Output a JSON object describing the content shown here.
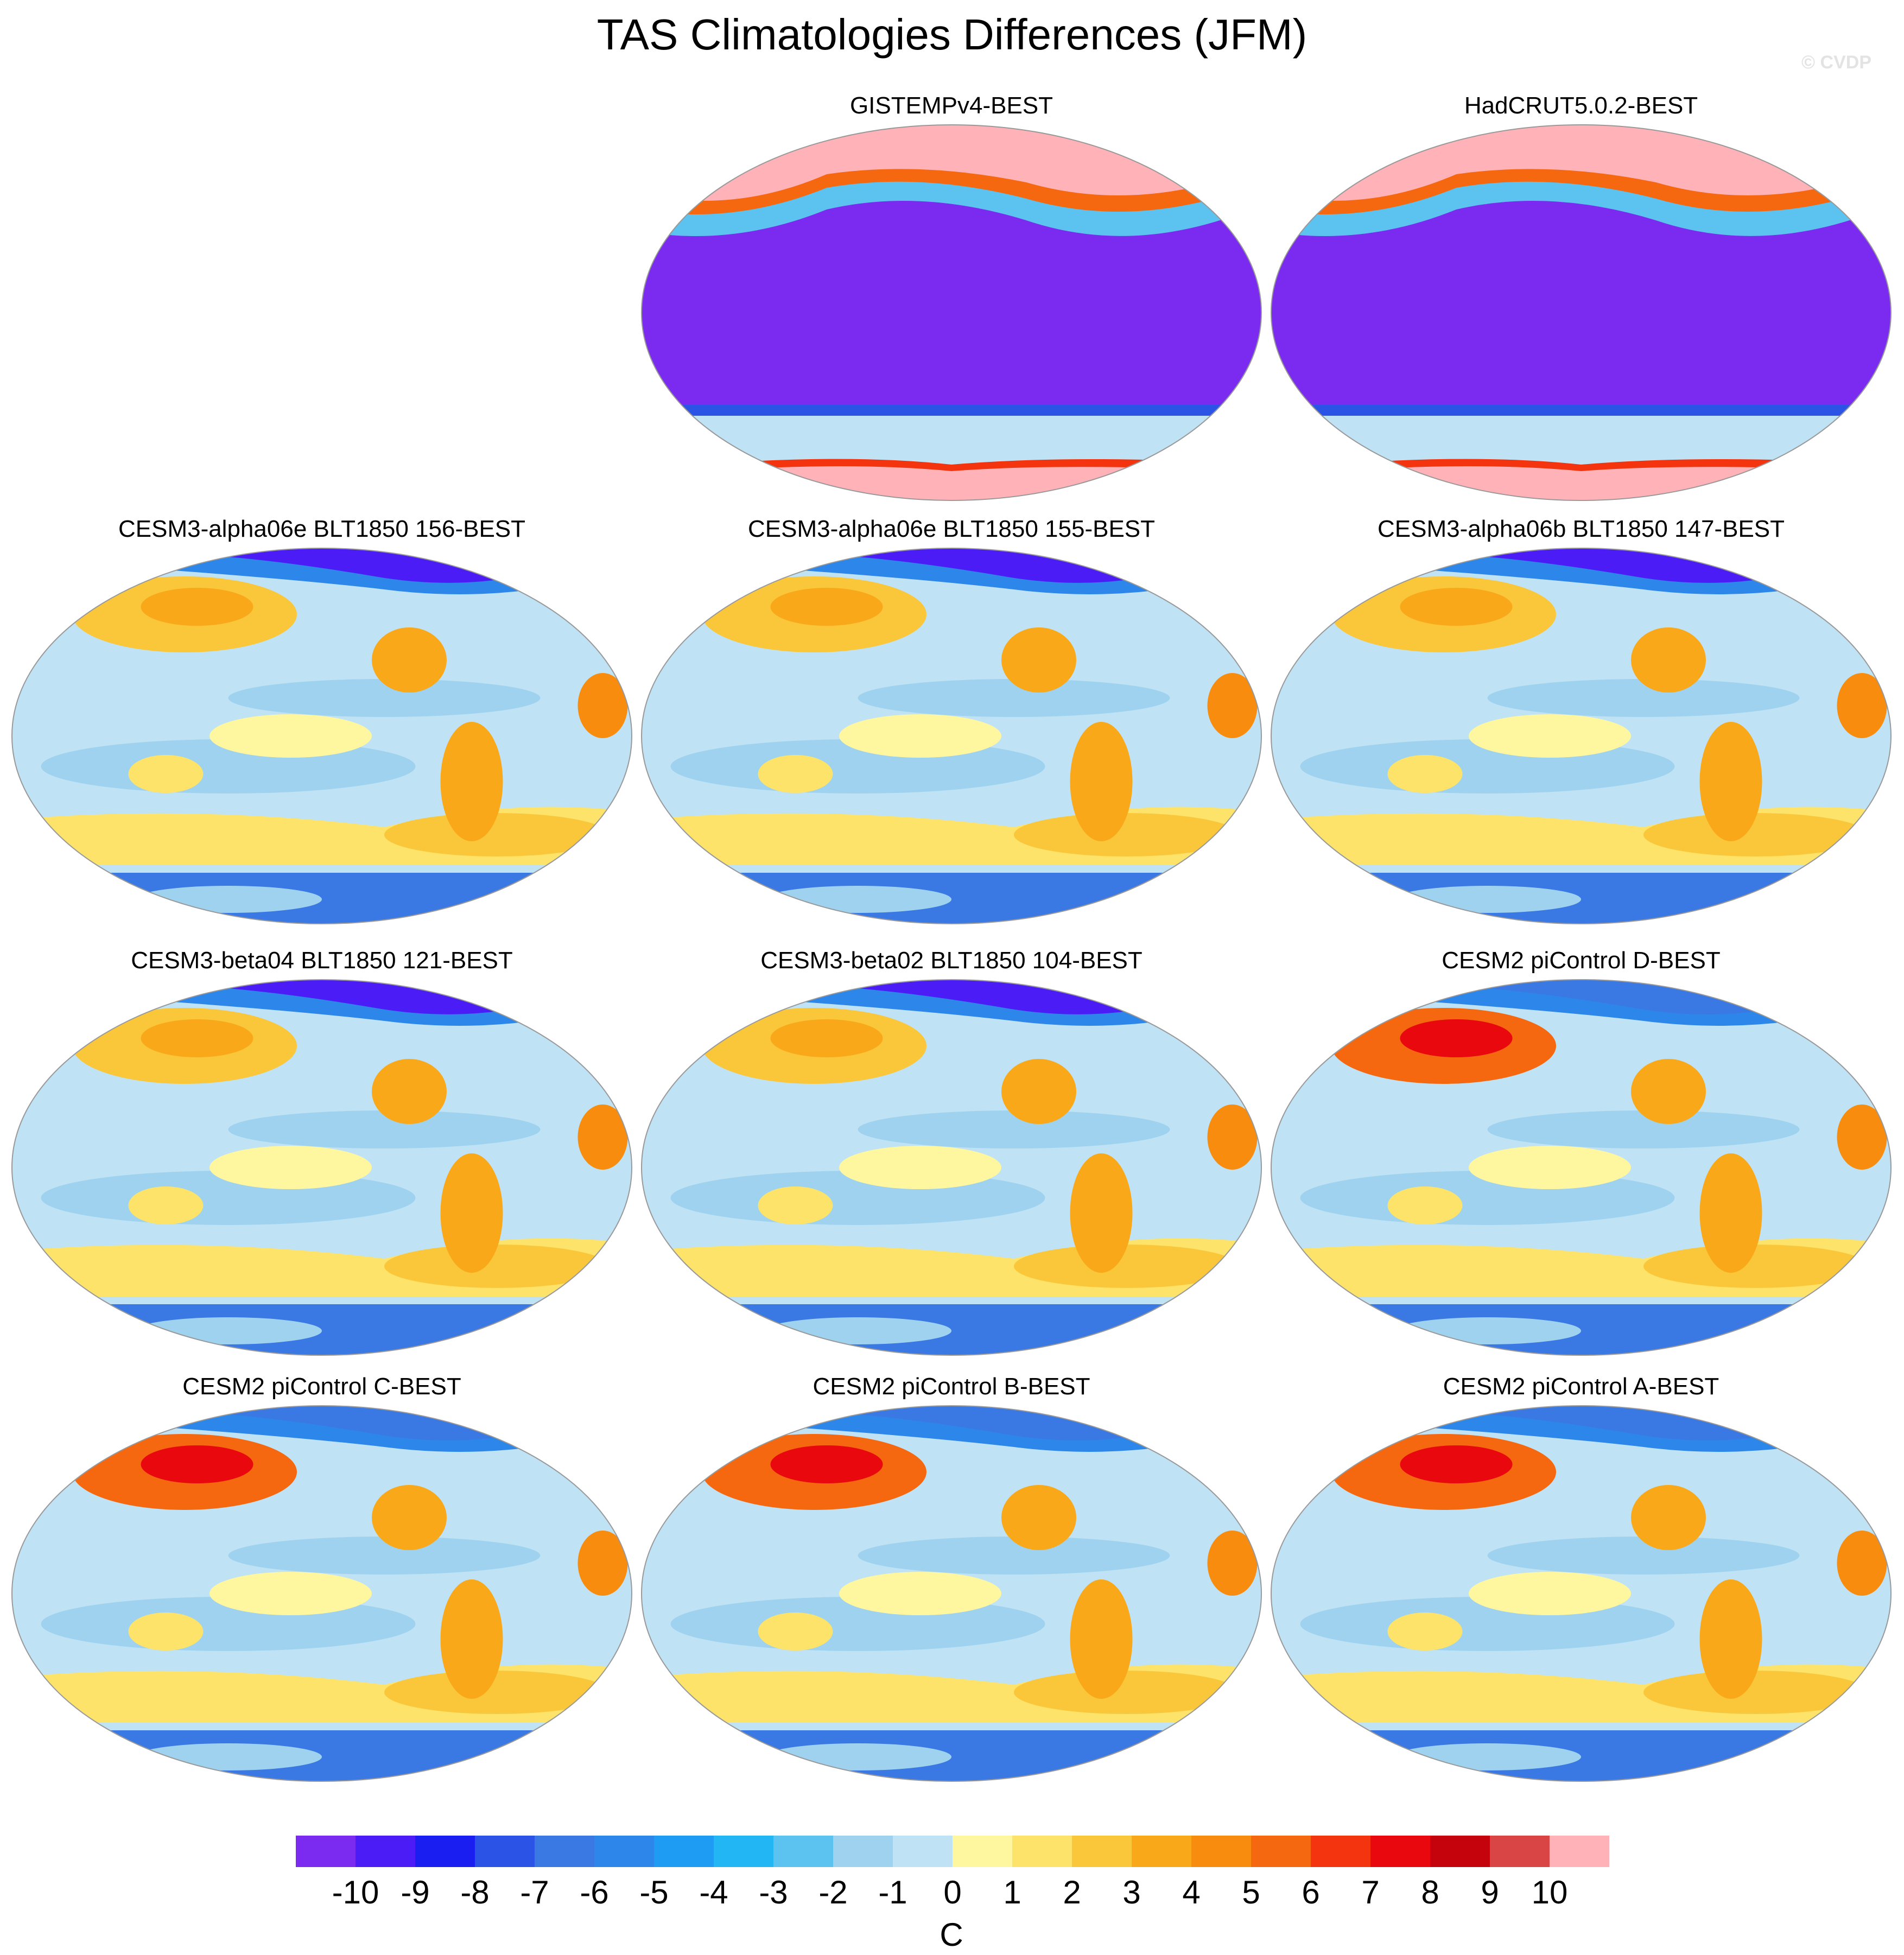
{
  "title": "TAS Climatologies Differences (JFM)",
  "watermark": "© CVDP",
  "panels": [
    {
      "title": "GISTEMPv4-BEST",
      "style": "obs"
    },
    {
      "title": "HadCRUT5.0.2-BEST",
      "style": "obs"
    },
    {
      "title": "CESM3-alpha06e BLT1850 156-BEST",
      "style": "cold"
    },
    {
      "title": "CESM3-alpha06e BLT1850 155-BEST",
      "style": "cold"
    },
    {
      "title": "CESM3-alpha06b BLT1850 147-BEST",
      "style": "cold"
    },
    {
      "title": "CESM3-beta04 BLT1850 121-BEST",
      "style": "cold"
    },
    {
      "title": "CESM3-beta02 BLT1850 104-BEST",
      "style": "cold"
    },
    {
      "title": "CESM2 piControl D-BEST",
      "style": "warm"
    },
    {
      "title": "CESM2 piControl C-BEST",
      "style": "warm"
    },
    {
      "title": "CESM2 piControl B-BEST",
      "style": "warm"
    },
    {
      "title": "CESM2 piControl A-BEST",
      "style": "warm"
    }
  ],
  "colorbar": {
    "colors": [
      "#7a2bef",
      "#4b1cf5",
      "#1a1ef0",
      "#2b54e6",
      "#3a78e4",
      "#2d86ea",
      "#1e9cf4",
      "#22b6f4",
      "#5cc2f0",
      "#9fd2ef",
      "#bfe2f5",
      "#fff6a0",
      "#fde36a",
      "#fbc73a",
      "#f9a81a",
      "#f78c0e",
      "#f56810",
      "#f3340e",
      "#e8080e",
      "#c4030c",
      "#d94444",
      "#ffb3b8"
    ],
    "labels": [
      "-10",
      "-9",
      "-8",
      "-7",
      "-6",
      "-5",
      "-4",
      "-3",
      "-2",
      "-1",
      "0",
      "1",
      "2",
      "3",
      "4",
      "5",
      "6",
      "7",
      "8",
      "9",
      "10"
    ],
    "unit": "C"
  }
}
